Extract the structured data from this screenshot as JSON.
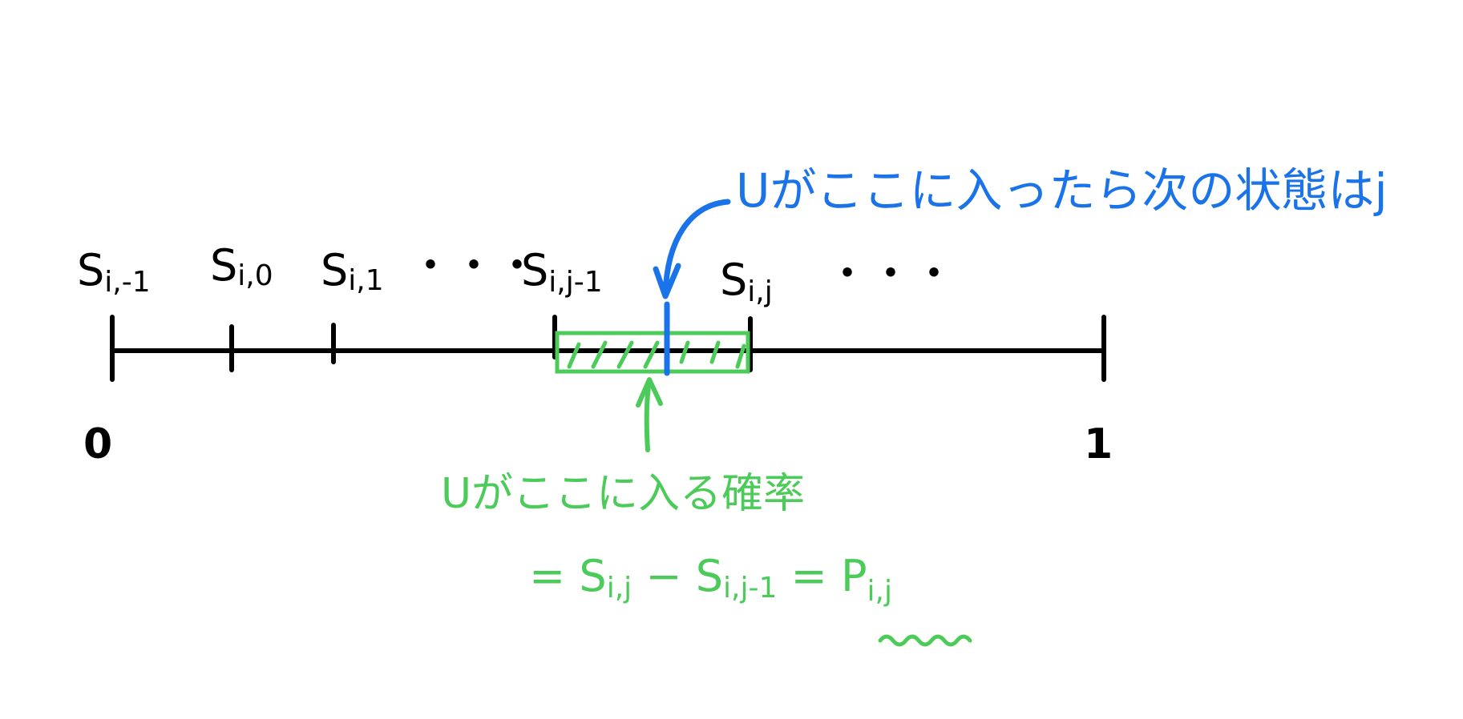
{
  "colors": {
    "axis": "#000000",
    "highlight": "#1a73e8",
    "interval": "#4ccb5a",
    "background": "#ffffff"
  },
  "axis": {
    "start_label": "0",
    "end_label": "1"
  },
  "ticks": [
    {
      "base": "S",
      "sub": "i,-1"
    },
    {
      "base": "S",
      "sub": "i,0"
    },
    {
      "base": "S",
      "sub": "i,1"
    },
    {
      "base": "・・・",
      "sub": ""
    },
    {
      "base": "S",
      "sub": "i,j-1"
    },
    {
      "base": "S",
      "sub": "i,j"
    },
    {
      "base": "・・・",
      "sub": ""
    }
  ],
  "blue_annotation": {
    "text": "Uがここに入ったら次の状態はj"
  },
  "green_annotation": {
    "line1": "Uがここに入る確率",
    "eq_prefix": "= ",
    "eq_s1": "S",
    "eq_s1_sub": "i,j",
    "eq_minus": " − ",
    "eq_s2": "S",
    "eq_s2_sub": "i,j-1",
    "eq_equals": " = ",
    "eq_p": "P",
    "eq_p_sub": "i,j"
  }
}
